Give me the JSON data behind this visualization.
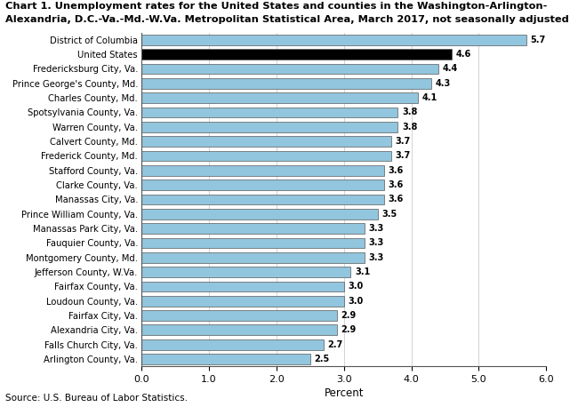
{
  "title_line1": "Chart 1. Unemployment rates for the United States and counties in the Washington-Arlington-",
  "title_line2": "Alexandria, D.C.-Va.-Md.-W.Va. Metropolitan Statistical Area, March 2017, not seasonally adjusted",
  "categories": [
    "District of Columbia",
    "United States",
    "Fredericksburg City, Va.",
    "Prince George's County, Md.",
    "Charles County, Md.",
    "Spotsylvania County, Va.",
    "Warren County, Va.",
    "Calvert County, Md.",
    "Frederick County, Md.",
    "Stafford County, Va.",
    "Clarke County, Va.",
    "Manassas City, Va.",
    "Prince William County, Va.",
    "Manassas Park City, Va.",
    "Fauquier County, Va.",
    "Montgomery County, Md.",
    "Jefferson County, W.Va.",
    "Fairfax County, Va.",
    "Loudoun County, Va.",
    "Fairfax City, Va.",
    "Alexandria City, Va.",
    "Falls Church City, Va.",
    "Arlington County, Va."
  ],
  "values": [
    5.7,
    4.6,
    4.4,
    4.3,
    4.1,
    3.8,
    3.8,
    3.7,
    3.7,
    3.6,
    3.6,
    3.6,
    3.5,
    3.3,
    3.3,
    3.3,
    3.1,
    3.0,
    3.0,
    2.9,
    2.9,
    2.7,
    2.5
  ],
  "bar_colors": [
    "#92c5de",
    "#000000",
    "#92c5de",
    "#92c5de",
    "#92c5de",
    "#92c5de",
    "#92c5de",
    "#92c5de",
    "#92c5de",
    "#92c5de",
    "#92c5de",
    "#92c5de",
    "#92c5de",
    "#92c5de",
    "#92c5de",
    "#92c5de",
    "#92c5de",
    "#92c5de",
    "#92c5de",
    "#92c5de",
    "#92c5de",
    "#92c5de",
    "#92c5de"
  ],
  "xlabel": "Percent",
  "xlim": [
    0,
    6.0
  ],
  "xticks": [
    0.0,
    1.0,
    2.0,
    3.0,
    4.0,
    5.0,
    6.0
  ],
  "source": "Source: U.S. Bureau of Labor Statistics.",
  "bar_edge_color": "#5a5a5a",
  "bar_linewidth": 0.5,
  "bar_height": 0.72
}
